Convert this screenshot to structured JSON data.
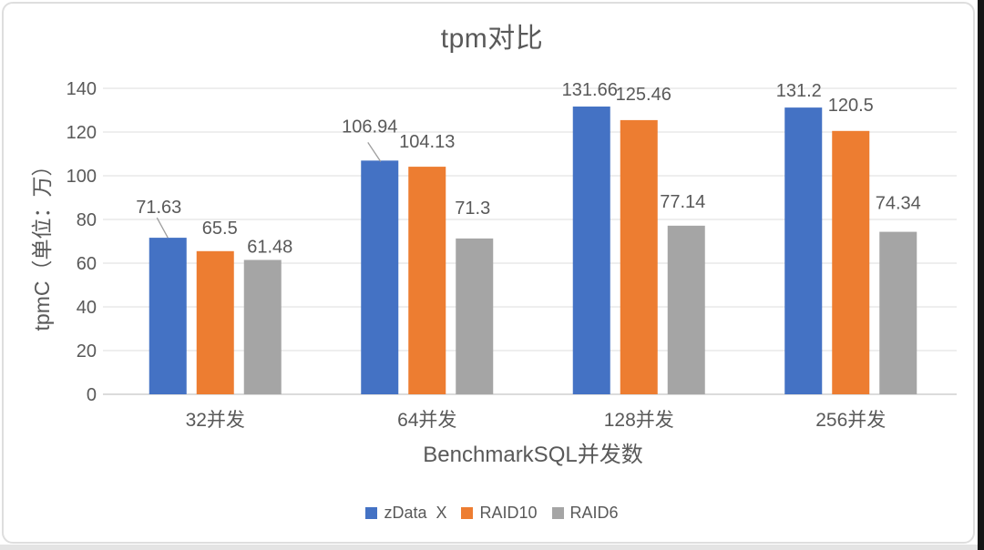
{
  "chart_data": {
    "type": "bar",
    "title": "tpm对比",
    "xlabel": "BenchmarkSQL并发数",
    "ylabel": "tpmC（单位：万）",
    "categories": [
      "32并发",
      "64并发",
      "128并发",
      "256并发"
    ],
    "series": [
      {
        "name": "zData  X",
        "color": "#4472C4",
        "values": [
          71.63,
          106.94,
          131.66,
          131.2
        ]
      },
      {
        "name": "RAID10",
        "color": "#ED7D31",
        "values": [
          65.5,
          104.13,
          125.46,
          120.5
        ]
      },
      {
        "name": "RAID6",
        "color": "#A5A5A5",
        "values": [
          61.48,
          71.3,
          77.14,
          74.34
        ]
      }
    ],
    "data_labels": [
      [
        "71.63",
        "106.94",
        "131.66",
        "131.2"
      ],
      [
        "65.5",
        "104.13",
        "125.46",
        "120.5"
      ],
      [
        "61.48",
        "71.3",
        "77.14",
        "74.34"
      ]
    ],
    "ylim": [
      0,
      140
    ],
    "yticks": [
      0,
      20,
      40,
      60,
      80,
      100,
      120,
      140
    ],
    "grid": true,
    "legend_position": "bottom"
  },
  "colors": {
    "bar_blue": "#4472C4",
    "bar_orange": "#ED7D31",
    "bar_gray": "#A5A5A5",
    "text": "#595959",
    "gridline": "#E3E3E3",
    "axis_line": "#CFCFCF",
    "leader_line": "#9E9E9E",
    "background": "#FFFFFF",
    "frame_border": "#DEDEDE",
    "right_edge": "#151515"
  }
}
